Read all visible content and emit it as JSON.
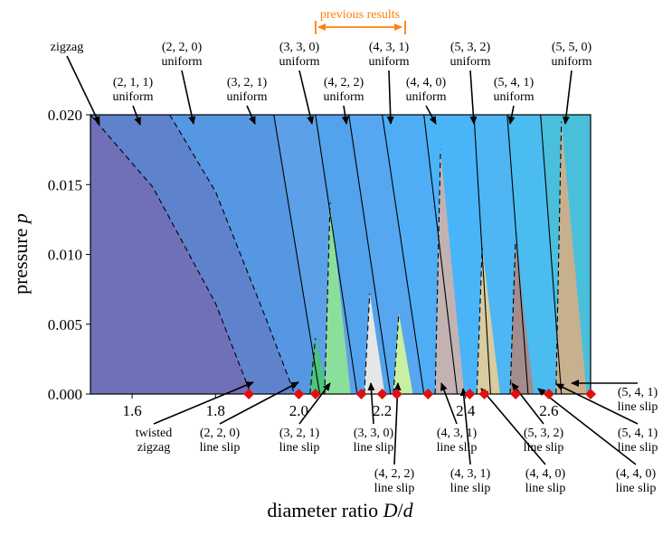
{
  "chart_data": {
    "type": "area",
    "title": "",
    "xlabel": "diameter ratio D/d",
    "ylabel": "pressure p",
    "xlim": [
      1.5,
      2.7
    ],
    "ylim": [
      0,
      0.02
    ],
    "x_ticks": [
      "1.6",
      "1.8",
      "2.0",
      "2.2",
      "2.4",
      "2.6"
    ],
    "x_tick_values": [
      1.6,
      1.8,
      2.0,
      2.2,
      2.4,
      2.6
    ],
    "y_ticks": [
      "0.000",
      "0.005",
      "0.010",
      "0.015",
      "0.020"
    ],
    "y_tick_values": [
      0.0,
      0.005,
      0.01,
      0.015,
      0.02
    ],
    "grid": false,
    "highlight": {
      "label": "previous results",
      "x_range": [
        2.07,
        2.27
      ],
      "color": "#ff7f0e"
    },
    "regions": [
      {
        "name": "zigzag",
        "color": "#7070b8",
        "boundary_right": [
          [
            1.5,
            0.02
          ],
          [
            1.65,
            0.0148
          ],
          [
            1.8,
            0.0065
          ],
          [
            1.885,
            0.0
          ]
        ]
      },
      {
        "name": "(2,1,1) uniform",
        "color": "#5f82cc",
        "boundary_right": [
          [
            1.69,
            0.02
          ],
          [
            1.8,
            0.0145
          ],
          [
            1.92,
            0.0055
          ],
          [
            1.99,
            0.0
          ]
        ]
      },
      {
        "name": "(2,2,0) uniform",
        "color": "#5597e3",
        "boundary_right": [
          [
            1.94,
            0.02
          ],
          [
            2.05,
            0.0
          ]
        ]
      },
      {
        "name": "(3,2,1) uniform",
        "color": "#5ca0e8",
        "boundary_right": [
          [
            2.04,
            0.02
          ],
          [
            2.14,
            0.0
          ]
        ]
      },
      {
        "name": "(3,3,0) uniform",
        "color": "#52a2ec",
        "boundary_right": [
          [
            2.12,
            0.02
          ],
          [
            2.22,
            0.0
          ]
        ]
      },
      {
        "name": "(4,2,2) uniform",
        "color": "#56a6f0",
        "boundary_right": [
          [
            2.2,
            0.02
          ],
          [
            2.3,
            0.0
          ]
        ]
      },
      {
        "name": "(4,3,1) uniform",
        "color": "#4fadf5",
        "boundary_right": [
          [
            2.3,
            0.02
          ],
          [
            2.38,
            0.0
          ]
        ]
      },
      {
        "name": "(4,4,0) uniform",
        "color": "#4ab4f8",
        "boundary_right": [
          [
            2.42,
            0.02
          ],
          [
            2.46,
            0.0
          ]
        ]
      },
      {
        "name": "(5,3,2) uniform",
        "color": "#4db6f3",
        "boundary_right": [
          [
            2.5,
            0.02
          ],
          [
            2.55,
            0.0
          ]
        ]
      },
      {
        "name": "(5,4,1) uniform",
        "color": "#4bbcef",
        "boundary_right": [
          [
            2.58,
            0.02
          ],
          [
            2.63,
            0.0
          ]
        ]
      },
      {
        "name": "(5,5,0) uniform",
        "color": "#4abfdc",
        "boundary_right": [
          [
            2.7,
            0.02
          ],
          [
            2.7,
            0.0
          ]
        ]
      }
    ],
    "line_slip_regions": [
      {
        "name": "(2,2,0) line slip",
        "color": "#4cc47a",
        "apex": [
          2.04,
          0.004
        ]
      },
      {
        "name": "(3,2,1) line slip",
        "color": "#8ae09a",
        "apex": [
          2.075,
          0.0137
        ]
      },
      {
        "name": "(3,3,0) line slip",
        "color": "#e6e6e6",
        "apex": [
          2.17,
          0.0072
        ]
      },
      {
        "name": "(4,2,2) line slip",
        "color": "#c8f0a0",
        "apex": [
          2.24,
          0.0058
        ]
      },
      {
        "name": "(4,3,1) line slip",
        "color": "#c2b2b2",
        "apex": [
          2.34,
          0.0175
        ]
      },
      {
        "name": "(4,4,0) line slip",
        "color": "#d8cca0",
        "apex": [
          2.44,
          0.0105
        ]
      },
      {
        "name": "(5,3,2) line slip",
        "color": "#a48c8c",
        "apex": [
          2.52,
          0.011
        ]
      },
      {
        "name": "(5,4,1) line slip",
        "color": "#c6b08e",
        "apex": [
          2.63,
          0.0195
        ]
      }
    ],
    "markers": {
      "symbol": "diamond",
      "color": "#e01010",
      "x": [
        1.88,
        2.0,
        2.04,
        2.15,
        2.2,
        2.235,
        2.31,
        2.41,
        2.445,
        2.52,
        2.6,
        2.72
      ],
      "y": [
        0,
        0,
        0,
        0,
        0,
        0,
        0,
        0,
        0,
        0,
        0,
        0
      ]
    }
  },
  "labels": {
    "top": [
      {
        "text": "zigzag"
      },
      {
        "text": "(2, 1, 1)",
        "sub": "uniform"
      },
      {
        "text": "(2, 2, 0)",
        "sub": "uniform"
      },
      {
        "text": "(3, 2, 1)",
        "sub": "uniform"
      },
      {
        "text": "(3, 3, 0)",
        "sub": "uniform"
      },
      {
        "text": "(4, 2, 2)",
        "sub": "uniform"
      },
      {
        "text": "(4, 3, 1)",
        "sub": "uniform"
      },
      {
        "text": "(4, 4, 0)",
        "sub": "uniform"
      },
      {
        "text": "(5, 3, 2)",
        "sub": "uniform"
      },
      {
        "text": "(5, 4, 1)",
        "sub": "uniform"
      },
      {
        "text": "(5, 5, 0)",
        "sub": "uniform"
      }
    ],
    "bottom": [
      {
        "text": "twisted",
        "sub": "zigzag"
      },
      {
        "text": "(2, 2, 0)",
        "sub": "line slip"
      },
      {
        "text": "(3, 2, 1)",
        "sub": "line slip"
      },
      {
        "text": "(3, 3, 0)",
        "sub": "line slip"
      },
      {
        "text": "(4, 2, 2)",
        "sub": "line slip"
      },
      {
        "text": "(4, 3, 1)",
        "sub": "line slip"
      },
      {
        "text": "(4, 3, 1)",
        "sub": "line slip"
      },
      {
        "text": "(4, 4, 0)",
        "sub": "line slip"
      },
      {
        "text": "(5, 3, 2)",
        "sub": "line slip"
      },
      {
        "text": "(4, 4, 0)",
        "sub": "line slip"
      },
      {
        "text": "(5, 4, 1)",
        "sub": "line slip"
      },
      {
        "text": "(5, 4, 1)",
        "sub": "line slip"
      }
    ]
  }
}
